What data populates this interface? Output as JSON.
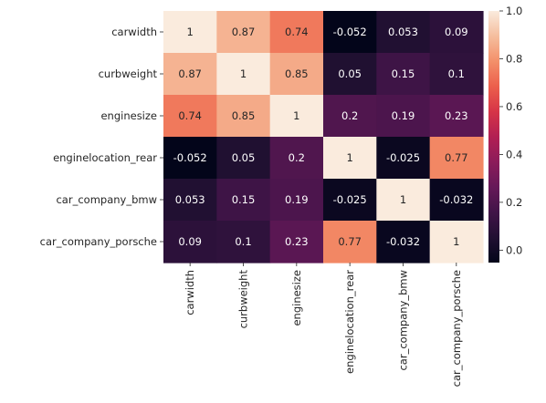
{
  "chart_data": {
    "type": "heatmap",
    "title": "",
    "xlabel": "",
    "ylabel": "",
    "rows": [
      "carwidth",
      "curbweight",
      "enginesize",
      "enginelocation_rear",
      "car_company_bmw",
      "car_company_porsche"
    ],
    "columns": [
      "carwidth",
      "curbweight",
      "enginesize",
      "enginelocation_rear",
      "car_company_bmw",
      "car_company_porsche"
    ],
    "values": [
      [
        1,
        0.87,
        0.74,
        -0.052,
        0.053,
        0.09
      ],
      [
        0.87,
        1,
        0.85,
        0.05,
        0.15,
        0.1
      ],
      [
        0.74,
        0.85,
        1,
        0.2,
        0.19,
        0.23
      ],
      [
        -0.052,
        0.05,
        0.2,
        1,
        -0.025,
        0.77
      ],
      [
        0.053,
        0.15,
        0.19,
        -0.025,
        1,
        -0.032
      ],
      [
        0.09,
        0.1,
        0.23,
        0.77,
        -0.032,
        1
      ]
    ],
    "annotations": [
      [
        "1",
        "0.87",
        "0.74",
        "-0.052",
        "0.053",
        "0.09"
      ],
      [
        "0.87",
        "1",
        "0.85",
        "0.05",
        "0.15",
        "0.1"
      ],
      [
        "0.74",
        "0.85",
        "1",
        "0.2",
        "0.19",
        "0.23"
      ],
      [
        "-0.052",
        "0.05",
        "0.2",
        "1",
        "-0.025",
        "0.77"
      ],
      [
        "0.053",
        "0.15",
        "0.19",
        "-0.025",
        "1",
        "-0.032"
      ],
      [
        "0.09",
        "0.1",
        "0.23",
        "0.77",
        "-0.032",
        "1"
      ]
    ],
    "colormap": "rocket",
    "vmin": -0.052,
    "vmax": 1.0,
    "colorbar": {
      "ticks": [
        0.0,
        0.2,
        0.4,
        0.6,
        0.8,
        1.0
      ],
      "tick_labels": [
        "0.0",
        "0.2",
        "0.4",
        "0.6",
        "0.8",
        "1.0"
      ]
    },
    "legend_placement": "right",
    "grid": false
  }
}
